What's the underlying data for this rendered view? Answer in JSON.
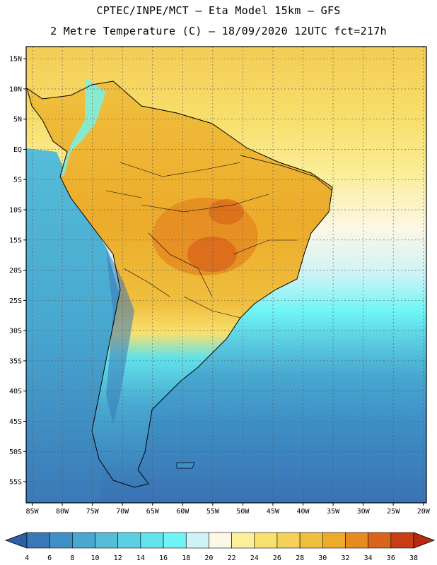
{
  "header": {
    "title_line1": "CPTEC/INPE/MCT –  Eta Model 15km – GFS",
    "title_line2": "2 Metre Temperature (C) – 18/09/2020 12UTC fct=217h"
  },
  "map": {
    "lat_labels": [
      "15N",
      "10N",
      "5N",
      "EQ",
      "5S",
      "10S",
      "15S",
      "20S",
      "25S",
      "30S",
      "35S",
      "40S",
      "45S",
      "50S",
      "55S"
    ],
    "lat_values": [
      15,
      10,
      5,
      0,
      -5,
      -10,
      -15,
      -20,
      -25,
      -30,
      -35,
      -40,
      -45,
      -50,
      -55
    ],
    "lon_labels": [
      "85W",
      "80W",
      "75W",
      "70W",
      "65W",
      "60W",
      "55W",
      "50W",
      "45W",
      "40W",
      "35W",
      "30W",
      "25W",
      "20W"
    ],
    "lon_values": [
      -85,
      -80,
      -75,
      -70,
      -65,
      -60,
      -55,
      -50,
      -45,
      -40,
      -35,
      -30,
      -25,
      -20
    ],
    "extent": {
      "lon_min": -86,
      "lon_max": -19.5,
      "lat_min": -58.5,
      "lat_max": 17
    },
    "grid": true
  },
  "colorbar": {
    "ticks": [
      "4",
      "6",
      "8",
      "10",
      "12",
      "14",
      "16",
      "18",
      "20",
      "22",
      "24",
      "26",
      "28",
      "30",
      "32",
      "34",
      "36",
      "38"
    ],
    "colors": [
      "#2e5fa6",
      "#3a79b8",
      "#3e90c6",
      "#48a8d0",
      "#56bcd8",
      "#5cd0e2",
      "#62e2ea",
      "#6ff5f5",
      "#cef3f6",
      "#fcf7e6",
      "#fbef99",
      "#f8e16e",
      "#f4d25a",
      "#f0bf3e",
      "#ecab2a",
      "#e58b22",
      "#d9651a",
      "#c83e12",
      "#b82a10"
    ]
  }
}
